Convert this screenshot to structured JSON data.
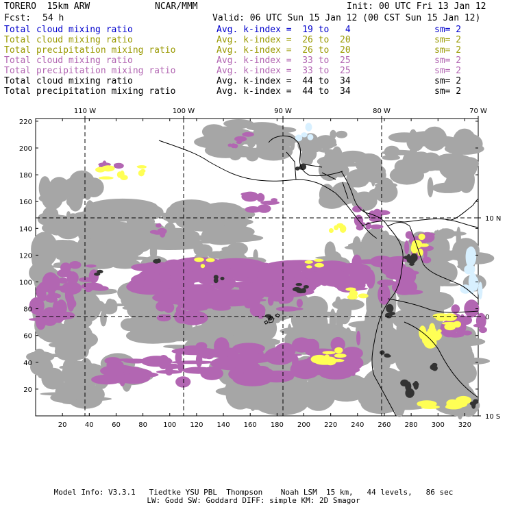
{
  "header": {
    "model": "TORERO  15km ARW",
    "org": "NCAR/MMM",
    "init": "Init: 00 UTC Fri 13 Jan 12",
    "fcst_label": "Fcst:",
    "fcst_value": "54 h",
    "valid": "Valid: 06 UTC Sun 15 Jan 12 (00 CST Sun 15 Jan 12)"
  },
  "legend": [
    {
      "field": "Total cloud mixing ratio",
      "index": "Avg. k-index =  19 to   4",
      "sm": "sm= 2",
      "color": "#0000cc"
    },
    {
      "field": "Total cloud mixing ratio",
      "index": "Avg. k-index =  26 to  20",
      "sm": "sm= 2",
      "color": "#999900"
    },
    {
      "field": "Total precipitation mixing ratio",
      "index": "Avg. k-index =  26 to  20",
      "sm": "sm= 2",
      "color": "#999900"
    },
    {
      "field": "Total cloud mixing ratio",
      "index": "Avg. k-index =  33 to  25",
      "sm": "sm= 2",
      "color": "#b266b2"
    },
    {
      "field": "Total precipitation mixing ratio",
      "index": "Avg. k-index =  33 to  25",
      "sm": "sm= 2",
      "color": "#b266b2"
    },
    {
      "field": "Total cloud mixing ratio",
      "index": "Avg. k-index =  44 to  34",
      "sm": "sm= 2",
      "color": "#000000"
    },
    {
      "field": "Total precipitation mixing ratio",
      "index": "Avg. k-index =  44 to  34",
      "sm": "sm= 2",
      "color": "#000000"
    }
  ],
  "map": {
    "lon_labels": [
      "110 W",
      "100 W",
      "90 W",
      "80 W",
      "70 W"
    ],
    "lat_labels": [
      "10 N",
      "0",
      "10 S"
    ],
    "y_grid_labels": [
      "220",
      "200",
      "180",
      "160",
      "140",
      "120",
      "100",
      "80",
      "60",
      "40",
      "20"
    ],
    "x_grid_labels": [
      "20",
      "40",
      "60",
      "80",
      "100",
      "120",
      "140",
      "160",
      "180",
      "200",
      "220",
      "240",
      "260",
      "280",
      "300",
      "320"
    ],
    "colors": {
      "cloud_gray": "#a6a6a6",
      "dark_core": "#333333",
      "purple": "#b266b2",
      "yellow": "#ffff55",
      "light_blue": "#d8f0ff"
    }
  },
  "footer": {
    "line1": "Model Info: V3.3.1   Tiedtke YSU PBL  Thompson    Noah LSM  15 km,   44 levels,   86 sec",
    "line2": "LW: Godd SW: Goddard DIFF: simple KM: 2D Smagor"
  }
}
